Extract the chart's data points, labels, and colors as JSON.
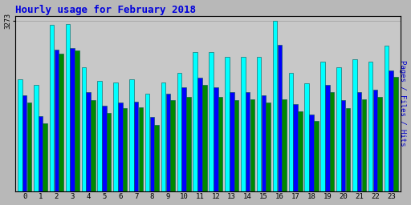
{
  "title": "Hourly usage for February 2018",
  "title_color": "#0000dd",
  "background_color": "#b8b8b8",
  "plot_bg_color": "#c8c8c8",
  "ylabel_right": "Pages / Files / Hits",
  "max_value": 3273,
  "hours": [
    0,
    1,
    2,
    3,
    4,
    5,
    6,
    7,
    8,
    9,
    10,
    11,
    12,
    13,
    14,
    15,
    16,
    17,
    18,
    19,
    20,
    21,
    22,
    23
  ],
  "pages": [
    1700,
    1300,
    2650,
    2700,
    1750,
    1500,
    1600,
    1620,
    1280,
    1750,
    1820,
    2050,
    1820,
    1750,
    1760,
    1700,
    1760,
    1540,
    1350,
    1900,
    1600,
    1760,
    1820,
    2200
  ],
  "files": [
    1850,
    1450,
    2720,
    2760,
    1900,
    1640,
    1700,
    1720,
    1420,
    1880,
    2000,
    2180,
    2000,
    1900,
    1900,
    1840,
    2820,
    1680,
    1480,
    2050,
    1750,
    1900,
    1950,
    2320
  ],
  "hits": [
    2150,
    2050,
    3200,
    3210,
    2380,
    2120,
    2090,
    2150,
    1870,
    2090,
    2280,
    2680,
    2680,
    2580,
    2590,
    2580,
    3273,
    2280,
    2070,
    2490,
    2380,
    2540,
    2490,
    2800
  ],
  "pages_color": "#008800",
  "files_color": "#0000ff",
  "hits_color": "#00ffff",
  "bar_edge_color": "#005555",
  "ylim": [
    0,
    3400
  ],
  "tick_color": "#0000cc",
  "grid_color": "#999999"
}
